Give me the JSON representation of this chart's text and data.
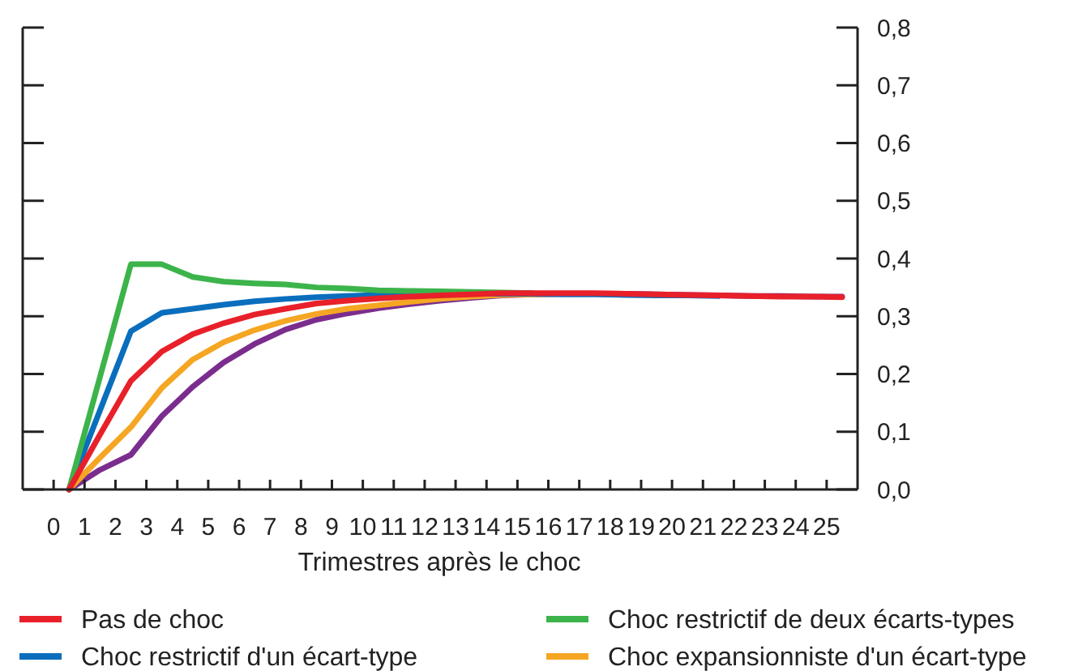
{
  "chart_data": {
    "type": "line",
    "xlabel": "Trimestres après le choc",
    "x": [
      0.5,
      1.5,
      2.5,
      3.5,
      4.5,
      5.5,
      6.5,
      7.5,
      8.5,
      9.5,
      10.5,
      11.5,
      12.5,
      13.5,
      14.5,
      15.5,
      16.5,
      17.5,
      18.5,
      19.5,
      20.5,
      21.5,
      22.5,
      23.5,
      24.5,
      25.5
    ],
    "xlim": [
      -1,
      26
    ],
    "xticks": [
      0,
      1,
      2,
      3,
      4,
      5,
      6,
      7,
      8,
      9,
      10,
      11,
      12,
      13,
      14,
      15,
      16,
      17,
      18,
      19,
      20,
      21,
      22,
      23,
      24,
      25
    ],
    "ylim": [
      0,
      0.8
    ],
    "yticks": [
      {
        "value": 0,
        "label": "0,0"
      },
      {
        "value": 0.1,
        "label": "0,1"
      },
      {
        "value": 0.2,
        "label": "0,2"
      },
      {
        "value": 0.3,
        "label": "0,3"
      },
      {
        "value": 0.4,
        "label": "0,4"
      },
      {
        "value": 0.5,
        "label": "0,5"
      },
      {
        "value": 0.6,
        "label": "0,6"
      },
      {
        "value": 0.7,
        "label": "0,7"
      },
      {
        "value": 0.8,
        "label": "0,8"
      }
    ],
    "grid": false,
    "legend": "bottom",
    "marker": "none",
    "line_style": "solid",
    "series": [
      {
        "name": "Pas de choc",
        "color": "#e8202a",
        "values": [
          0,
          0.095,
          0.188,
          0.239,
          0.269,
          0.288,
          0.303,
          0.313,
          0.322,
          0.327,
          0.331,
          0.334,
          0.336,
          0.338,
          0.34,
          0.34,
          0.34,
          0.34,
          0.339,
          0.338,
          0.337,
          0.336,
          0.335,
          0.334,
          0.334,
          0.333
        ]
      },
      {
        "name": "Choc restrictif de deux écarts-types",
        "color": "#3cb44b",
        "values": [
          0,
          0.195,
          0.39,
          0.39,
          0.368,
          0.36,
          0.357,
          0.355,
          0.35,
          0.348,
          0.345,
          0.344,
          0.343,
          0.342,
          0.341,
          0.34,
          null,
          null,
          null,
          null,
          null,
          null,
          null,
          null,
          null,
          null
        ]
      },
      {
        "name": "Choc restrictif d'un écart-type",
        "color": "#0a6ebd",
        "values": [
          0,
          0.137,
          0.274,
          0.306,
          0.313,
          0.32,
          0.326,
          0.33,
          0.333,
          0.335,
          0.337,
          0.338,
          0.339,
          0.339,
          0.339,
          0.339,
          0.338,
          0.338,
          0.337,
          0.336,
          0.336,
          0.335,
          null,
          null,
          null,
          null
        ]
      },
      {
        "name": "Choc expansionniste d'un écart-type",
        "color": "#f5a623",
        "values": [
          0,
          0.055,
          0.108,
          0.176,
          0.225,
          0.255,
          0.276,
          0.292,
          0.304,
          0.313,
          0.319,
          0.325,
          0.33,
          0.334,
          0.337,
          0.338,
          0.339,
          null,
          null,
          null,
          null,
          null,
          null,
          null,
          null,
          null
        ]
      },
      {
        "color": "#7b2d8e",
        "values": [
          0,
          0.034,
          0.06,
          0.127,
          0.178,
          0.22,
          0.252,
          0.277,
          0.294,
          0.305,
          0.314,
          0.321,
          0.327,
          0.332,
          0.336,
          0.338,
          0.339,
          0.339,
          0.339,
          0.338,
          0.337,
          0.336,
          0.335,
          0.335,
          0.334,
          0.334
        ]
      }
    ]
  }
}
